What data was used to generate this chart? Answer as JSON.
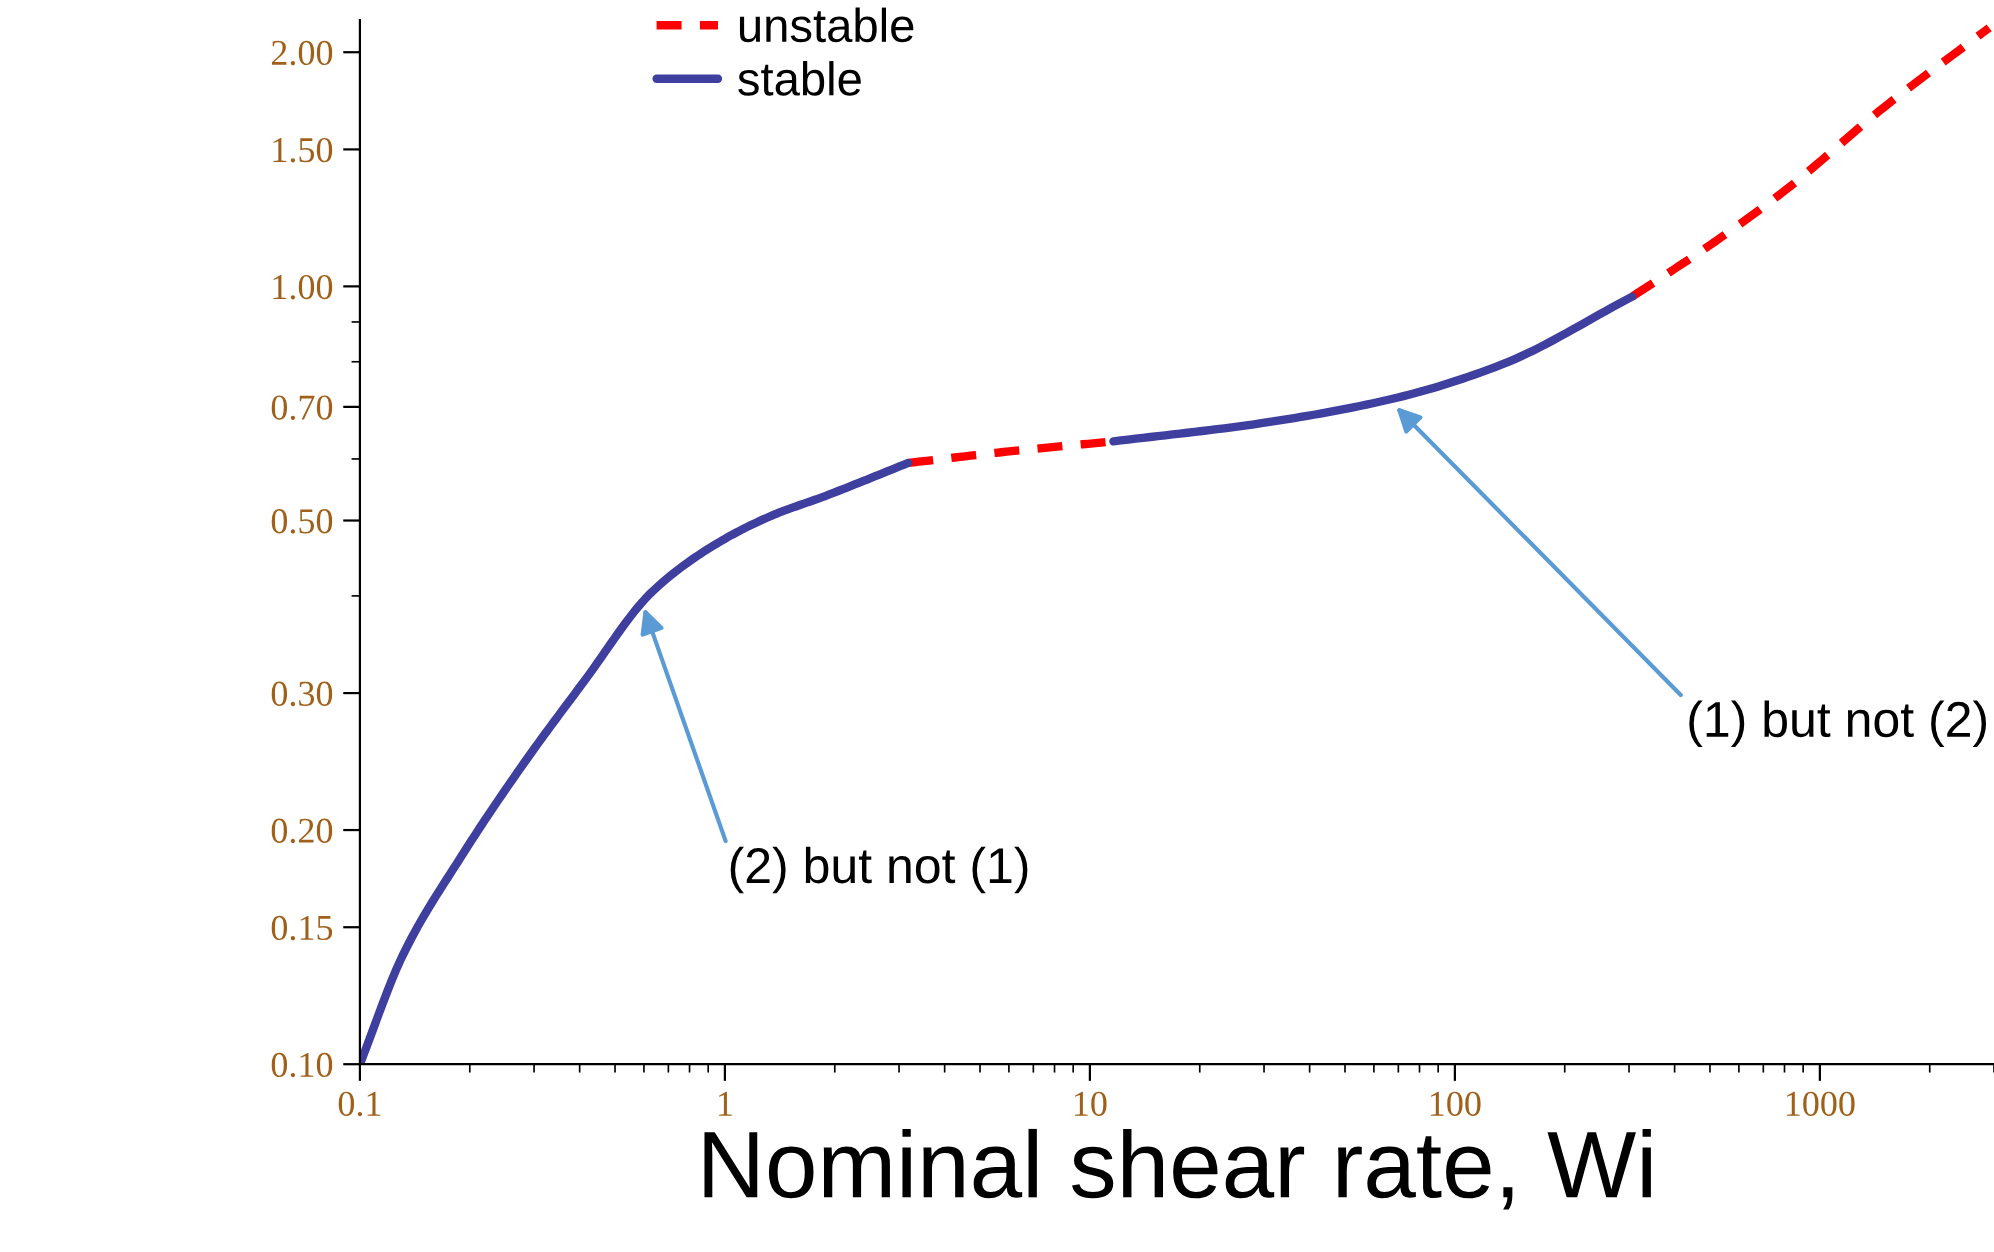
{
  "chart_data": {
    "type": "line",
    "xlabel": "Nominal shear rate, Wi",
    "log": "xy",
    "grid": false,
    "legend": "top left",
    "xlim": [
      0.1,
      3000
    ],
    "ylim": [
      0.1,
      2.2
    ],
    "xticks": [
      0.1,
      1,
      10,
      100,
      1000
    ],
    "yticks": [
      {
        "value": 0.1,
        "label": "0.10"
      },
      {
        "value": 0.15,
        "label": "0.15"
      },
      {
        "value": 0.2,
        "label": "0.20"
      },
      {
        "value": 0.3,
        "label": "0.30"
      },
      {
        "value": 0.5,
        "label": "0.50"
      },
      {
        "value": 0.7,
        "label": "0.70"
      },
      {
        "value": 1.0,
        "label": "1.00"
      },
      {
        "value": 1.5,
        "label": "1.50"
      },
      {
        "value": 2.0,
        "label": "2.00"
      }
    ],
    "series": [
      {
        "name": "unstable",
        "color": "#ff0000",
        "line_style": "dashed",
        "x": [
          3.18,
          6.1,
          11.6,
          20,
          306,
          500,
          805,
          1500,
          2910
        ],
        "values": [
          0.593,
          0.614,
          0.632,
          null,
          0.97,
          1.13,
          1.33,
          1.7,
          2.15
        ]
      },
      {
        "name": "stable",
        "color": "#3f3f9f",
        "line_style": "solid",
        "x": [
          0.1,
          0.131,
          0.191,
          0.28,
          0.41,
          0.632,
          0.95,
          1.34,
          1.89,
          3.18,
          6,
          11.6,
          29.5,
          67.5,
          134,
          306
        ],
        "values": [
          0.1,
          0.138,
          0.186,
          0.243,
          0.31,
          0.405,
          0.467,
          0.507,
          0.538,
          0.593,
          null,
          0.632,
          0.667,
          0.717,
          0.793,
          0.97
        ]
      }
    ],
    "annotations": [
      {
        "text": "(2) but not (1)",
        "x": 0.6,
        "y": 0.386
      },
      {
        "text": "(1) but not (2)",
        "x": 69,
        "y": 0.7
      }
    ]
  }
}
